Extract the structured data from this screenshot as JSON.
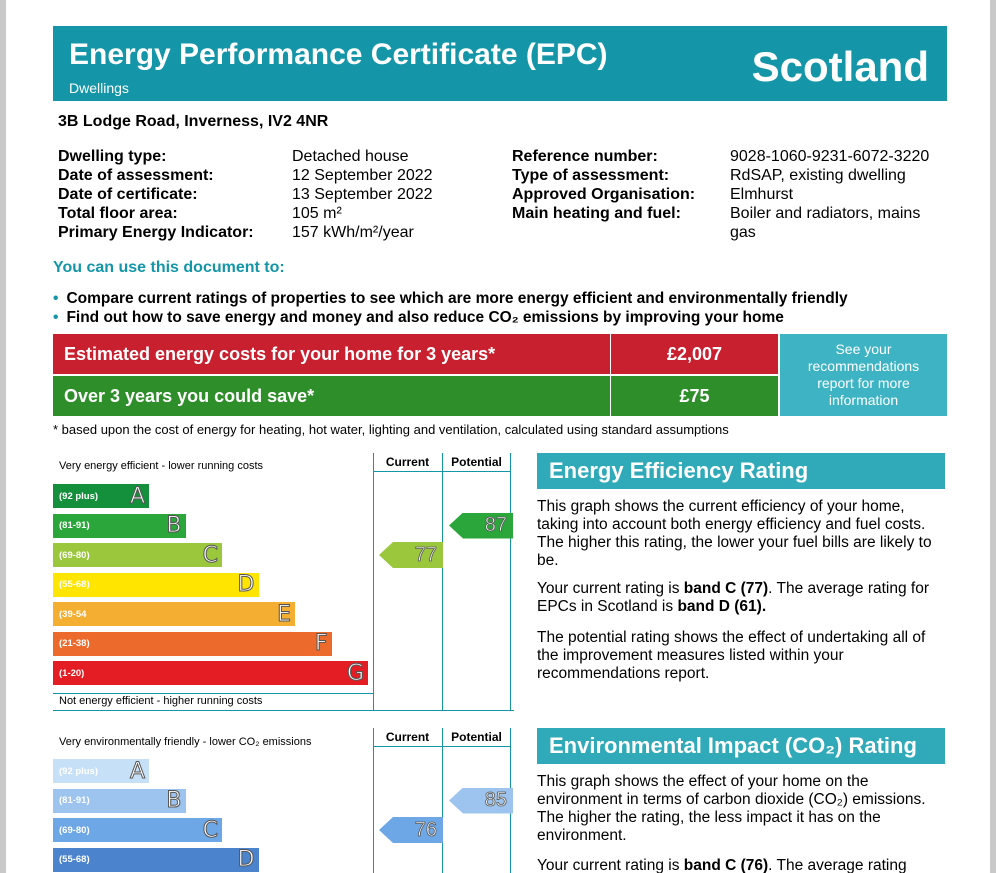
{
  "header": {
    "title": "Energy Performance Certificate (EPC)",
    "subtitle": "Dwellings",
    "region": "Scotland"
  },
  "address": "3B Lodge Road, Inverness, IV2 4NR",
  "details_left": [
    {
      "label": "Dwelling type:",
      "value": "Detached house"
    },
    {
      "label": "Date of assessment:",
      "value": "12 September 2022"
    },
    {
      "label": "Date of certificate:",
      "value": "13 September 2022"
    },
    {
      "label": "Total floor area:",
      "value": "105 m²"
    },
    {
      "label": "Primary Energy Indicator:",
      "value": "157 kWh/m²/year"
    }
  ],
  "details_right": [
    {
      "label": "Reference number:",
      "value": "9028-1060-9231-6072-3220"
    },
    {
      "label": "Type of assessment:",
      "value": "RdSAP, existing dwelling"
    },
    {
      "label": "Approved Organisation:",
      "value": "Elmhurst"
    },
    {
      "label": "Main heating and fuel:",
      "value": "Boiler and radiators, mains"
    },
    {
      "label": "",
      "value": "gas"
    }
  ],
  "uses": {
    "heading": "You can use this document to:",
    "items": [
      "Compare current ratings of properties to see which are more energy efficient and environmentally friendly",
      "Find out how to save energy and money and also reduce CO₂ emissions by improving your home"
    ]
  },
  "costs": {
    "estimated_label": "Estimated energy costs for your home for 3 years*",
    "estimated_value": "£2,007",
    "save_label": "Over 3 years you could save*",
    "save_value": "£75",
    "see_recs": "See your recommendations report for more information",
    "footnote": "* based upon the cost of energy for heating, hot water, lighting and ventilation, calculated using standard assumptions"
  },
  "energy_chart": {
    "top_caption": "Very energy efficient - lower running costs",
    "bottom_caption": "Not energy efficient - higher running costs",
    "col_current": "Current",
    "col_potential": "Potential",
    "bands": [
      {
        "range": "(92 plus)",
        "letter": "A",
        "color": "#14903c"
      },
      {
        "range": "(81-91)",
        "letter": "B",
        "color": "#2ba63a"
      },
      {
        "range": "(69-80)",
        "letter": "C",
        "color": "#9ac73c"
      },
      {
        "range": "(55-68)",
        "letter": "D",
        "color": "#ffe500"
      },
      {
        "range": "(39-54",
        "letter": "E",
        "color": "#f4ae31"
      },
      {
        "range": "(21-38)",
        "letter": "F",
        "color": "#ec6a2c"
      },
      {
        "range": "(1-20)",
        "letter": "G",
        "color": "#e31d23"
      }
    ],
    "current": 77,
    "current_band": "C",
    "current_color": "#9ac73c",
    "potential": 87,
    "potential_band": "B",
    "potential_color": "#2ba63a"
  },
  "env_chart": {
    "top_caption": "Very environmentally friendly - lower CO₂ emissions",
    "col_current": "Current",
    "col_potential": "Potential",
    "bands": [
      {
        "range": "(92 plus)",
        "letter": "A",
        "color": "#c6e0f7"
      },
      {
        "range": "(81-91)",
        "letter": "B",
        "color": "#9cc4ee"
      },
      {
        "range": "(69-80)",
        "letter": "C",
        "color": "#6ea7e6"
      },
      {
        "range": "(55-68)",
        "letter": "D",
        "color": "#4b84cc"
      }
    ],
    "current": 76,
    "current_band": "C",
    "current_color": "#6ea7e6",
    "potential": 85,
    "potential_band": "B",
    "potential_color": "#9cc4ee"
  },
  "eer": {
    "heading": "Energy Efficiency Rating",
    "p1": "This graph shows the current efficiency of your home, taking into account both energy efficiency and fuel costs. The higher this rating, the lower your fuel bills are likely to be.",
    "p2_a": "Your current rating is ",
    "p2_b": "band C (77)",
    "p2_c": ". The average rating for EPCs in Scotland is ",
    "p2_d": "band D (61).",
    "p3": "The potential rating shows the effect of undertaking all of the improvement measures listed within your recommendations report."
  },
  "eir": {
    "heading": "Environmental Impact (CO₂) Rating",
    "p1": "This graph shows the effect of your home on the environment in terms of carbon dioxide (CO₂) emissions. The higher the rating, the less impact it has on the environment.",
    "p2_a": "Your current rating is ",
    "p2_b": "band C (76)",
    "p2_c": ". The average rating"
  }
}
